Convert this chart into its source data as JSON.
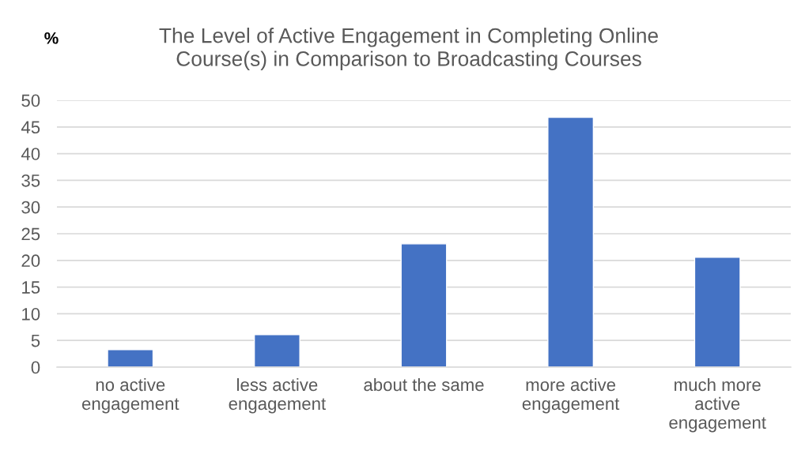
{
  "chart_data": {
    "type": "bar",
    "title": "The Level of Active Engagement in Completing Online Course(s) in Comparison to Broadcasting Courses",
    "ylabel": "%",
    "categories": [
      "no active engagement",
      "less active engagement",
      "about the same",
      "more active engagement",
      "much more active engagement"
    ],
    "values": [
      3.3,
      6.1,
      23.1,
      46.8,
      20.6
    ],
    "color": "#4472c4",
    "ylim": [
      0,
      50
    ],
    "yticks": [
      0,
      5,
      10,
      15,
      20,
      25,
      30,
      35,
      40,
      45,
      50
    ],
    "grid": "y"
  }
}
